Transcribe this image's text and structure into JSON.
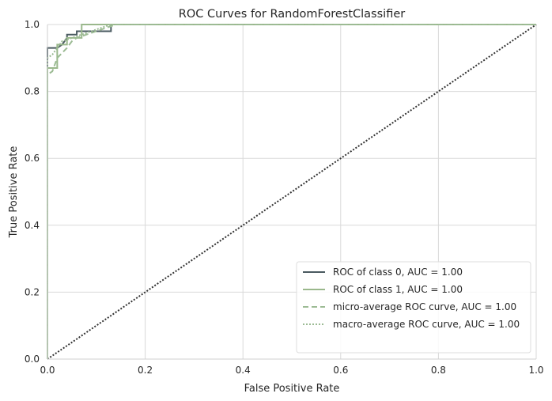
{
  "chart_data": {
    "type": "line",
    "title": "ROC Curves for RandomForestClassifier",
    "xlabel": "False Positive Rate",
    "ylabel": "True Positive Rate",
    "xlim": [
      0,
      1
    ],
    "ylim": [
      0,
      1
    ],
    "xticks": [
      "0.0",
      "0.2",
      "0.4",
      "0.6",
      "0.8",
      "1.0"
    ],
    "yticks": [
      "0.0",
      "0.2",
      "0.4",
      "0.6",
      "0.8",
      "1.0"
    ],
    "grid": true,
    "legend_position": "lower-right",
    "series": [
      {
        "name": "ROC of class 0, AUC = 1.00",
        "color": "#4a5a60",
        "style": "solid",
        "x": [
          0,
          0,
          0.02,
          0.03,
          0.04,
          0.04,
          0.06,
          0.06,
          0.13,
          0.13,
          1.0
        ],
        "y": [
          0,
          0.93,
          0.93,
          0.94,
          0.96,
          0.97,
          0.97,
          0.98,
          0.98,
          1.0,
          1.0
        ]
      },
      {
        "name": "ROC of class 1, AUC = 1.00",
        "color": "#9ab88c",
        "style": "solid",
        "x": [
          0,
          0,
          0.02,
          0.02,
          0.04,
          0.04,
          0.07,
          0.07,
          1.0
        ],
        "y": [
          0,
          0.87,
          0.87,
          0.94,
          0.94,
          0.96,
          0.96,
          1.0,
          1.0
        ]
      },
      {
        "name": "micro-average ROC curve, AUC = 1.00",
        "color": "#9cbb94",
        "style": "dashed",
        "x": [
          0,
          0,
          0.01,
          0.02,
          0.04,
          0.05,
          0.06,
          0.08,
          0.1,
          0.12,
          0.14,
          1.0
        ],
        "y": [
          0,
          0.85,
          0.86,
          0.9,
          0.93,
          0.95,
          0.96,
          0.97,
          0.98,
          0.99,
          1.0,
          1.0
        ]
      },
      {
        "name": "macro-average ROC curve, AUC = 1.00",
        "color": "#9cbb94",
        "style": "dotted",
        "x": [
          0,
          0,
          0.01,
          0.02,
          0.03,
          0.05,
          0.07,
          0.09,
          0.11,
          0.13,
          1.0
        ],
        "y": [
          0,
          0.9,
          0.91,
          0.93,
          0.95,
          0.96,
          0.97,
          0.98,
          0.99,
          1.0,
          1.0
        ]
      }
    ],
    "reference_line": {
      "color": "#333333",
      "style": "dotted",
      "x": [
        0,
        1
      ],
      "y": [
        0,
        1
      ]
    }
  }
}
